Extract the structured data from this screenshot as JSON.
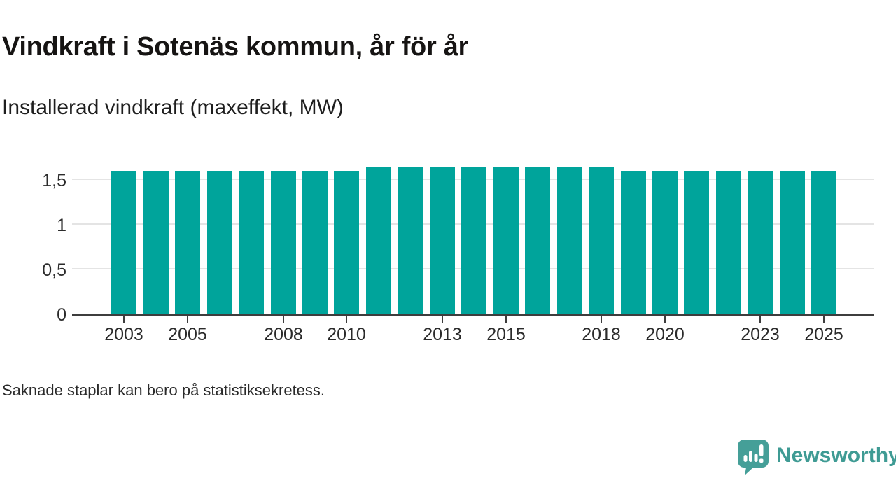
{
  "header": {
    "title": "Vindkraft i Sotenäs kommun, år för år",
    "subtitle": "Installerad vindkraft (maxeffekt, MW)"
  },
  "footnote": "Saknade staplar kan bero på statistiksekretess.",
  "brand": {
    "name": "Newsworthy",
    "logo_icon": "bar-chart-speech-bubble-icon",
    "color": "#3f9b94"
  },
  "colors": {
    "bar": "#00a49b",
    "axis": "#3d3d3d",
    "grid": "#e4e4e4",
    "tick_label": "#2b2b2b",
    "title": "#161413"
  },
  "chart_data": {
    "type": "bar",
    "title": "Vindkraft i Sotenäs kommun, år för år",
    "subtitle": "Installerad vindkraft (maxeffekt, MW)",
    "unit": "MW",
    "x": [
      2003,
      2004,
      2005,
      2006,
      2007,
      2008,
      2009,
      2010,
      2011,
      2012,
      2013,
      2014,
      2015,
      2016,
      2017,
      2018,
      2019,
      2020,
      2021,
      2022,
      2023,
      2024,
      2025
    ],
    "values": [
      1.6,
      1.6,
      1.6,
      1.6,
      1.6,
      1.6,
      1.6,
      1.6,
      1.65,
      1.65,
      1.65,
      1.65,
      1.65,
      1.65,
      1.65,
      1.65,
      1.6,
      1.6,
      1.6,
      1.6,
      1.6,
      1.6,
      1.6
    ],
    "x_tick_labels": [
      "2003",
      "2005",
      "2008",
      "2010",
      "2013",
      "2015",
      "2018",
      "2020",
      "2023",
      "2025"
    ],
    "y_ticks": [
      0,
      0.5,
      1,
      1.5
    ],
    "y_tick_labels": [
      "0",
      "0,5",
      "1",
      "1,5"
    ],
    "ylim": [
      0,
      1.75
    ],
    "grid": "horizontal",
    "legend": "none"
  }
}
